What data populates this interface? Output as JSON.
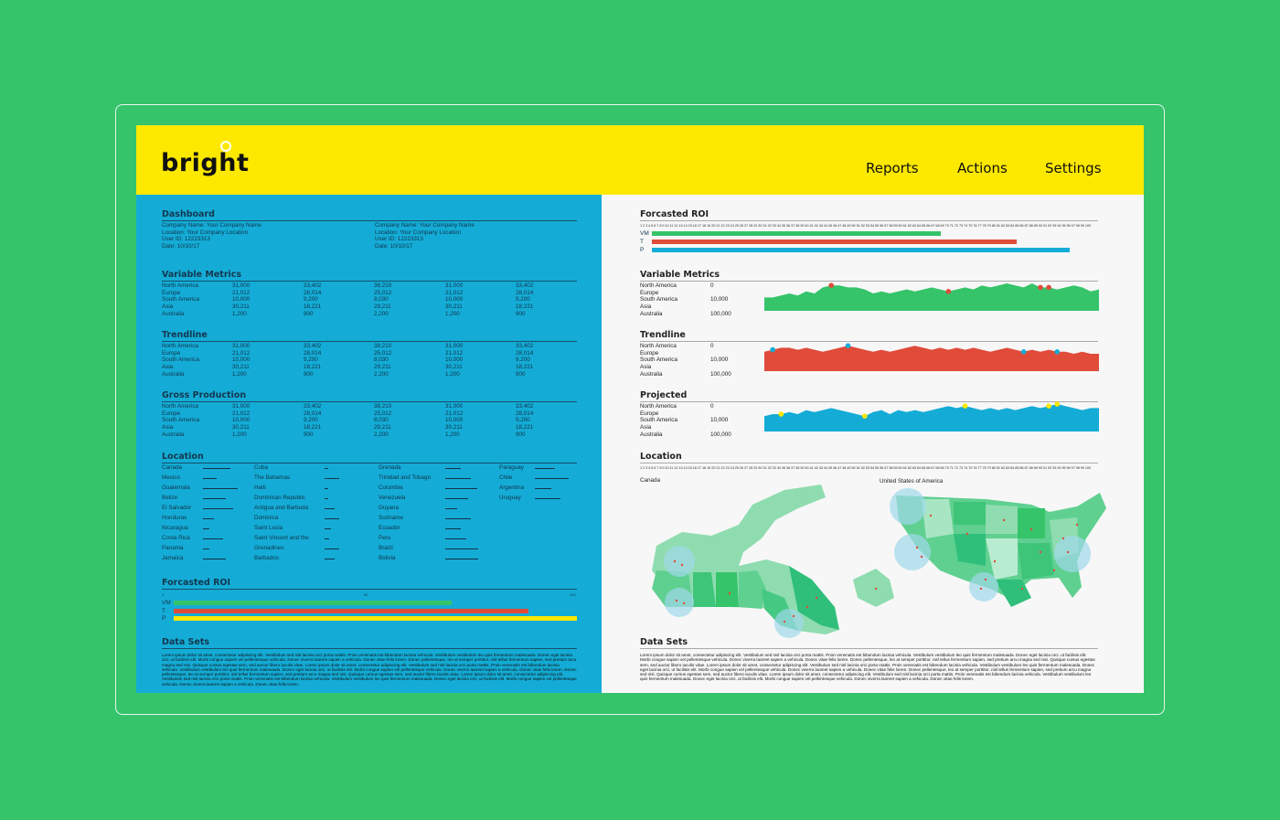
{
  "header": {
    "logo": "bright",
    "nav": [
      "Reports",
      "Actions",
      "Settings"
    ]
  },
  "colors": {
    "background": "#35c46a",
    "header": "#fde800",
    "left_panel": "#14acd6",
    "right_panel": "#f7f7f7",
    "vm": "#35c46a",
    "t": "#e04b3a",
    "p_left": "#fde800",
    "p_right": "#14acd6"
  },
  "dashboard": {
    "title": "Dashboard",
    "info": [
      [
        "Company Name: Your Company Name",
        "Location: Your Company Location",
        "User ID: 12223313",
        "Date: 10/10/17"
      ],
      [
        "Company Name: Your Company Name",
        "Location: Your Company Location",
        "User ID: 12223313",
        "Date: 10/10/17"
      ]
    ]
  },
  "tables": [
    {
      "title": "Variable Metrics",
      "rows": [
        [
          "North America",
          "31,000",
          "33,402",
          "38,210",
          "31,000",
          "33,402"
        ],
        [
          "Europe",
          "21,012",
          "28,014",
          "25,012",
          "21,012",
          "28,014"
        ],
        [
          "South America",
          "10,000",
          "9,200",
          "8,030",
          "10,000",
          "9,200"
        ],
        [
          "Asia",
          "30,211",
          "18,221",
          "29,211",
          "30,211",
          "18,221"
        ],
        [
          "Australia",
          "1,200",
          "900",
          "2,200",
          "1,200",
          "900"
        ]
      ]
    },
    {
      "title": "Trendline",
      "rows": [
        [
          "North America",
          "31,000",
          "33,402",
          "38,210",
          "31,000",
          "33,402"
        ],
        [
          "Europe",
          "21,012",
          "28,014",
          "25,012",
          "21,012",
          "28,014"
        ],
        [
          "South America",
          "10,000",
          "9,200",
          "8,030",
          "10,000",
          "9,200"
        ],
        [
          "Asia",
          "30,211",
          "18,221",
          "29,211",
          "30,211",
          "18,221"
        ],
        [
          "Australia",
          "1,200",
          "900",
          "2,200",
          "1,200",
          "900"
        ]
      ]
    },
    {
      "title": "Gross Production",
      "rows": [
        [
          "North America",
          "31,000",
          "33,402",
          "38,210",
          "31,000",
          "33,402"
        ],
        [
          "Europe",
          "21,012",
          "28,014",
          "25,012",
          "21,012",
          "28,014"
        ],
        [
          "South America",
          "10,000",
          "9,200",
          "8,030",
          "10,000",
          "9,200"
        ],
        [
          "Asia",
          "30,211",
          "18,221",
          "29,211",
          "30,211",
          "18,221"
        ],
        [
          "Australia",
          "1,200",
          "900",
          "2,200",
          "1,200",
          "900"
        ]
      ]
    }
  ],
  "location": {
    "title": "Location",
    "columns": [
      [
        [
          "Canada",
          30
        ],
        [
          "Mexico",
          15
        ],
        [
          "Guatemala",
          38
        ],
        [
          "Belize",
          25
        ],
        [
          "El Salvador",
          33
        ],
        [
          "Honduras",
          12
        ],
        [
          "Nicaragua",
          7
        ],
        [
          "Costa Rica",
          22
        ],
        [
          "Panama",
          7
        ],
        [
          "Jamaica",
          25
        ]
      ],
      [
        [
          "Cuba",
          4
        ],
        [
          "The Bahamas",
          16
        ],
        [
          "Haiti",
          4
        ],
        [
          "Dominican Republic",
          4
        ],
        [
          "Antigua and Barbuda",
          11
        ],
        [
          "Dominica",
          16
        ],
        [
          "Saint Lucia",
          7
        ],
        [
          "Saint Vincent and the",
          5
        ],
        [
          "Grenadines",
          16
        ],
        [
          "Barbados",
          11
        ]
      ],
      [
        [
          "Grenada",
          17
        ],
        [
          "Trinidad and Tobago",
          28
        ],
        [
          "Colombia",
          35
        ],
        [
          "Venezuela",
          25
        ],
        [
          "Guyana",
          13
        ],
        [
          "Suriname",
          28
        ],
        [
          "Ecuador",
          17
        ],
        [
          "Peru",
          23
        ],
        [
          "Brazil",
          36
        ],
        [
          "Bolivia",
          36
        ]
      ],
      [
        [
          "Paraguay",
          22
        ],
        [
          "Chile",
          37
        ],
        [
          "Argentina",
          18
        ],
        [
          "Uruguay",
          28
        ]
      ]
    ]
  },
  "roi_left": {
    "title": "Forcasted ROI",
    "scale": [
      "1",
      "50",
      "100"
    ],
    "bars": [
      {
        "label": "VM",
        "value": 69
      },
      {
        "label": "T",
        "value": 88
      },
      {
        "label": "P",
        "value": 100
      }
    ]
  },
  "data_sets": {
    "title": "Data Sets",
    "text": "Lorem ipsum dolor sit amet, consectetur adipiscing elit. Vestibulum sed nisl lacinia orci porta mattis. Proin venenatis est bibendum lacinia vehicula. Vestibulum vestibulum leo quis fermentum malesuada. Donec eget lacinia orci, ut facilisis elit. Morbi congue sapien vel pellentesque vehicula. Donec viverra laoreet sapien a vehicula. Donec vitae felis lorem. Donec pellentesque, leo at semper porttitor, nisl tellus fermentum sapien, sed pretium arcu magna sed nisi. Quisque cursus egestas sem, sed auctor libero iaculis vitae. Lorem ipsum dolor sit amet, consectetur adipiscing elit. Vestibulum sed nisl lacinia orci porta mattis. Proin venenatis est bibendum lacinia vehicula. Vestibulum vestibulum leo quis fermentum malesuada. Donec eget lacinia orci, ut facilisis elit. Morbi congue sapien vel pellentesque vehicula. Donec viverra laoreet sapien a vehicula. Donec vitae felis lorem. Donec pellentesque, leo at semper porttitor, nisl tellus fermentum sapien, sed pretium arcu magna sed nisi. Quisque cursus egestas sem, sed auctor libero iaculis vitae. Lorem ipsum dolor sit amet, consectetur adipiscing elit. Vestibulum sed nisl lacinia orci porta mattis. Proin venenatis est bibendum lacinia vehicula. Vestibulum vestibulum leo quis fermentum malesuada. Donec eget lacinia orci, ut facilisis elit. Morbi congue sapien vel pellentesque vehicula. Donec viverra laoreet sapien a vehicula. Donec vitae felis lorem."
  },
  "roi_right": {
    "title": "Forcasted ROI",
    "bars": [
      {
        "label": "VM",
        "value": 65
      },
      {
        "label": "T",
        "value": 82
      },
      {
        "label": "P",
        "value": 94
      }
    ]
  },
  "area_charts": [
    {
      "title": "Variable Metrics",
      "color": "#35c46a",
      "dot": "#e04b3a",
      "dots": [
        8,
        22,
        33,
        34
      ],
      "values": [
        3,
        3,
        4,
        5,
        4,
        6,
        5,
        8,
        9,
        9,
        8,
        8,
        7,
        5,
        6,
        5,
        6,
        7,
        6,
        7,
        8,
        7,
        6,
        7,
        8,
        7,
        9,
        8,
        9,
        10,
        9,
        8,
        10,
        8,
        8,
        7,
        8,
        9,
        8,
        6,
        7
      ]
    },
    {
      "title": "Trendline",
      "color": "#e04b3a",
      "dot": "#14acd6",
      "dots": [
        1,
        10,
        31,
        35
      ],
      "values": [
        6,
        7,
        8,
        8,
        7,
        8,
        7,
        6,
        7,
        8,
        9,
        8,
        7,
        6,
        7,
        6,
        7,
        8,
        9,
        8,
        7,
        8,
        7,
        8,
        7,
        8,
        7,
        6,
        7,
        8,
        7,
        6,
        7,
        6,
        7,
        6,
        6,
        5,
        6,
        5,
        5
      ]
    },
    {
      "title": "Projected",
      "color": "#14acd6",
      "dot": "#fde800",
      "dots": [
        2,
        12,
        24,
        34,
        35
      ],
      "values": [
        4,
        5,
        5,
        6,
        5,
        7,
        6,
        7,
        8,
        7,
        6,
        5,
        4,
        6,
        7,
        5,
        7,
        6,
        7,
        6,
        7,
        8,
        9,
        8,
        9,
        8,
        7,
        8,
        7,
        8,
        7,
        8,
        9,
        8,
        9,
        10,
        9,
        8,
        7,
        8,
        8
      ]
    }
  ],
  "area_labels": [
    [
      "North America",
      "0"
    ],
    [
      "Europe",
      ""
    ],
    [
      "South America",
      "10,000"
    ],
    [
      "Asia",
      ""
    ],
    [
      "Australia",
      "100,000"
    ]
  ],
  "location_right": {
    "title": "Location",
    "maps": [
      "Canada",
      "United States of America"
    ]
  }
}
